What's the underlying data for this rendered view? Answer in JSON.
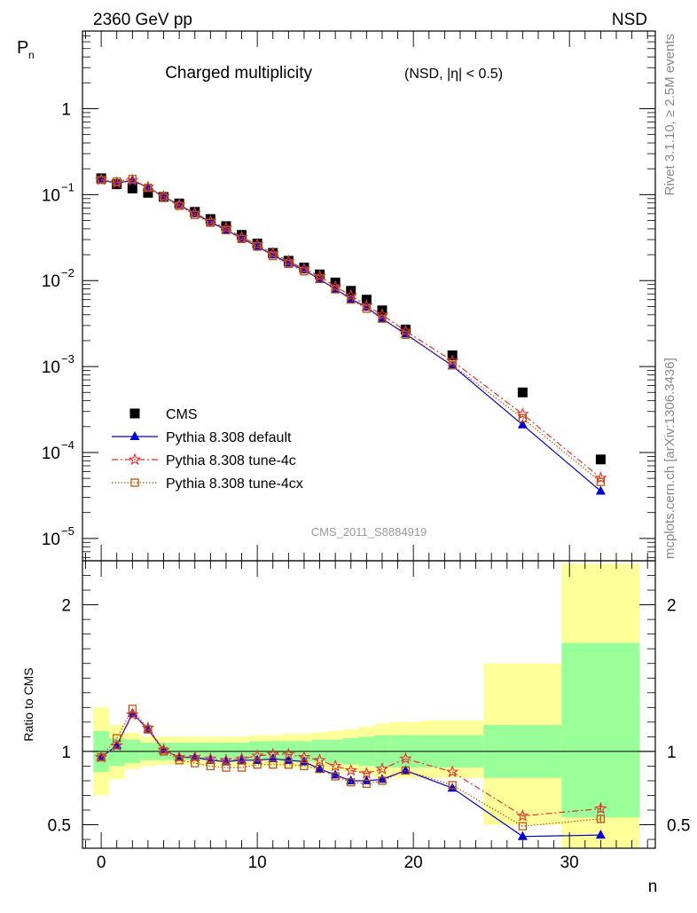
{
  "header": {
    "energy_label": "2360 GeV pp",
    "process_label": "NSD"
  },
  "side_labels": {
    "rivet": "Rivet 3.1.10, ≥ 2.5M events",
    "mcplots": "mcplots.cern.ch [arXiv:1306.3436]"
  },
  "colors": {
    "cms": "#000000",
    "default": "#0000cc",
    "tune4c": "#dd3333",
    "tune4cx": "#bb5511",
    "band_inner": "#99ff99",
    "band_outer": "#ffff99"
  },
  "chart_data": [
    {
      "type": "scatter",
      "panel": "main",
      "title": "Charged multiplicity",
      "title_suffix": "(NSD, |η| < 0.5)",
      "ylabel": "P",
      "ylabel_sub": "n",
      "yscale": "log",
      "xlim": [
        -1.2,
        35.5
      ],
      "ylim": [
        5.5e-06,
        8
      ],
      "y_ticks": [
        {
          "value": 1e-05,
          "label": "10",
          "exp": "−5"
        },
        {
          "value": 0.0001,
          "label": "10",
          "exp": "−4"
        },
        {
          "value": 0.001,
          "label": "10",
          "exp": "−3"
        },
        {
          "value": 0.01,
          "label": "10",
          "exp": "−2"
        },
        {
          "value": 0.1,
          "label": "10",
          "exp": "−1"
        },
        {
          "value": 1,
          "label": "1",
          "exp": ""
        }
      ],
      "watermark": "CMS_2011_S8884919",
      "legend_position": "bottom-left",
      "x": [
        0,
        1,
        2,
        3,
        4,
        5,
        6,
        7,
        8,
        9,
        10,
        11,
        12,
        13,
        14,
        15,
        16,
        17,
        18,
        19.5,
        22.5,
        27,
        32
      ],
      "series": [
        {
          "name": "CMS",
          "key": "cms",
          "marker": "square",
          "values": [
            0.155,
            0.132,
            0.118,
            0.105,
            0.094,
            0.079,
            0.063,
            0.052,
            0.043,
            0.034,
            0.027,
            0.021,
            0.017,
            0.0142,
            0.0118,
            0.0095,
            0.0076,
            0.006,
            0.0045,
            0.0027,
            0.00135,
            0.0005,
            8.3e-05
          ]
        },
        {
          "name": "Pythia 8.308 default",
          "key": "default",
          "marker": "triangle",
          "values": [
            0.148,
            0.136,
            0.146,
            0.121,
            0.095,
            0.076,
            0.06,
            0.048,
            0.039,
            0.031,
            0.025,
            0.0199,
            0.016,
            0.0133,
            0.0103,
            0.008,
            0.0061,
            0.0049,
            0.0036,
            0.0024,
            0.00102,
            0.00021,
            3.55e-05
          ]
        },
        {
          "name": "Pythia 8.308 tune-4c",
          "key": "tune4c",
          "marker": "star",
          "values": [
            0.149,
            0.137,
            0.147,
            0.122,
            0.095,
            0.076,
            0.061,
            0.049,
            0.041,
            0.032,
            0.0263,
            0.0207,
            0.0168,
            0.0137,
            0.0112,
            0.0085,
            0.0067,
            0.0051,
            0.004,
            0.00259,
            0.00116,
            0.00028,
            5.05e-05
          ]
        },
        {
          "name": "Pythia 8.308 tune-4cx",
          "key": "tune4cx",
          "marker": "open-square",
          "values": [
            0.148,
            0.142,
            0.152,
            0.12,
            0.094,
            0.074,
            0.058,
            0.047,
            0.0385,
            0.0305,
            0.0248,
            0.0193,
            0.0156,
            0.0128,
            0.0105,
            0.0079,
            0.006,
            0.0047,
            0.0036,
            0.00234,
            0.00104,
            0.00025,
            4.55e-05
          ]
        }
      ]
    },
    {
      "type": "line",
      "panel": "ratio",
      "ylabel": "Ratio to CMS",
      "xlabel": "n",
      "xlim": [
        -1.2,
        35.5
      ],
      "ylim": [
        0.34,
        2.3
      ],
      "x_ticks": [
        0,
        10,
        20,
        30
      ],
      "y_ticks": [
        {
          "value": 0.5,
          "label": "0.5"
        },
        {
          "value": 1,
          "label": "1"
        },
        {
          "value": 2,
          "label": "2"
        }
      ],
      "reference_line": 1,
      "bands": [
        {
          "x0": -0.5,
          "x1": 0.5,
          "inner": [
            0.86,
            1.14
          ],
          "outer": [
            0.7,
            1.3
          ]
        },
        {
          "x0": 0.5,
          "x1": 1.5,
          "inner": [
            0.9,
            1.09
          ],
          "outer": [
            0.81,
            1.18
          ]
        },
        {
          "x0": 1.5,
          "x1": 2.5,
          "inner": [
            0.92,
            1.08
          ],
          "outer": [
            0.88,
            1.13
          ]
        },
        {
          "x0": 2.5,
          "x1": 3.5,
          "inner": [
            0.94,
            1.06
          ],
          "outer": [
            0.9,
            1.1
          ]
        },
        {
          "x0": 3.5,
          "x1": 4.5,
          "inner": [
            0.94,
            1.06
          ],
          "outer": [
            0.91,
            1.1
          ]
        },
        {
          "x0": 4.5,
          "x1": 5.5,
          "inner": [
            0.94,
            1.06
          ],
          "outer": [
            0.91,
            1.1
          ]
        },
        {
          "x0": 5.5,
          "x1": 6.5,
          "inner": [
            0.94,
            1.06
          ],
          "outer": [
            0.91,
            1.1
          ]
        },
        {
          "x0": 6.5,
          "x1": 7.5,
          "inner": [
            0.94,
            1.06
          ],
          "outer": [
            0.9,
            1.1
          ]
        },
        {
          "x0": 7.5,
          "x1": 8.5,
          "inner": [
            0.94,
            1.06
          ],
          "outer": [
            0.9,
            1.1
          ]
        },
        {
          "x0": 8.5,
          "x1": 9.5,
          "inner": [
            0.94,
            1.06
          ],
          "outer": [
            0.9,
            1.1
          ]
        },
        {
          "x0": 9.5,
          "x1": 10.5,
          "inner": [
            0.94,
            1.07
          ],
          "outer": [
            0.9,
            1.11
          ]
        },
        {
          "x0": 10.5,
          "x1": 11.5,
          "inner": [
            0.94,
            1.07
          ],
          "outer": [
            0.9,
            1.11
          ]
        },
        {
          "x0": 11.5,
          "x1": 12.5,
          "inner": [
            0.93,
            1.07
          ],
          "outer": [
            0.89,
            1.12
          ]
        },
        {
          "x0": 12.5,
          "x1": 13.5,
          "inner": [
            0.93,
            1.07
          ],
          "outer": [
            0.89,
            1.12
          ]
        },
        {
          "x0": 13.5,
          "x1": 14.5,
          "inner": [
            0.93,
            1.08
          ],
          "outer": [
            0.88,
            1.13
          ]
        },
        {
          "x0": 14.5,
          "x1": 15.5,
          "inner": [
            0.92,
            1.08
          ],
          "outer": [
            0.87,
            1.14
          ]
        },
        {
          "x0": 15.5,
          "x1": 16.5,
          "inner": [
            0.91,
            1.09
          ],
          "outer": [
            0.86,
            1.15
          ]
        },
        {
          "x0": 16.5,
          "x1": 17.5,
          "inner": [
            0.9,
            1.1
          ],
          "outer": [
            0.84,
            1.17
          ]
        },
        {
          "x0": 17.5,
          "x1": 18.5,
          "inner": [
            0.89,
            1.11
          ],
          "outer": [
            0.82,
            1.19
          ]
        },
        {
          "x0": 18.5,
          "x1": 20.5,
          "inner": [
            0.89,
            1.11
          ],
          "outer": [
            0.82,
            1.2
          ]
        },
        {
          "x0": 20.5,
          "x1": 24.5,
          "inner": [
            0.89,
            1.11
          ],
          "outer": [
            0.82,
            1.21
          ]
        },
        {
          "x0": 24.5,
          "x1": 29.5,
          "inner": [
            0.82,
            1.18
          ],
          "outer": [
            0.5,
            1.6
          ]
        },
        {
          "x0": 29.5,
          "x1": 34.5,
          "inner": [
            0.55,
            1.74
          ],
          "outer": [
            0.34,
            2.28
          ]
        }
      ],
      "x": [
        0,
        1,
        2,
        3,
        4,
        5,
        6,
        7,
        8,
        9,
        10,
        11,
        12,
        13,
        14,
        15,
        16,
        17,
        18,
        19.5,
        22.5,
        27,
        32
      ],
      "series": [
        {
          "name": "Pythia 8.308 default",
          "key": "default",
          "marker": "triangle",
          "values": [
            0.96,
            1.04,
            1.26,
            1.15,
            1.01,
            0.96,
            0.96,
            0.94,
            0.93,
            0.94,
            0.94,
            0.95,
            0.94,
            0.93,
            0.88,
            0.84,
            0.8,
            0.8,
            0.81,
            0.87,
            0.75,
            0.42,
            0.43
          ],
          "err": [
            0,
            0,
            0,
            0,
            0,
            0,
            0,
            0,
            0,
            0,
            0,
            0,
            0,
            0,
            0,
            0,
            0,
            0,
            0,
            0,
            0,
            0,
            0.025
          ]
        },
        {
          "name": "Pythia 8.308 tune-4c",
          "key": "tune4c",
          "marker": "star",
          "values": [
            0.96,
            1.04,
            1.25,
            1.16,
            1.01,
            0.96,
            0.96,
            0.95,
            0.94,
            0.95,
            0.97,
            0.98,
            0.98,
            0.96,
            0.94,
            0.9,
            0.87,
            0.85,
            0.88,
            0.95,
            0.86,
            0.56,
            0.61
          ],
          "err": [
            0,
            0,
            0,
            0,
            0,
            0,
            0,
            0,
            0,
            0,
            0,
            0,
            0,
            0,
            0,
            0,
            0,
            0,
            0,
            0,
            0,
            0,
            0.025
          ]
        },
        {
          "name": "Pythia 8.308 tune-4cx",
          "key": "tune4cx",
          "marker": "open-square",
          "values": [
            0.96,
            1.09,
            1.29,
            1.15,
            1.0,
            0.94,
            0.92,
            0.9,
            0.89,
            0.89,
            0.91,
            0.91,
            0.91,
            0.9,
            0.88,
            0.83,
            0.79,
            0.78,
            0.8,
            0.87,
            0.77,
            0.49,
            0.54
          ],
          "err": [
            0,
            0,
            0,
            0,
            0,
            0,
            0,
            0,
            0,
            0,
            0,
            0,
            0,
            0,
            0,
            0,
            0,
            0,
            0,
            0,
            0,
            0,
            0.025
          ]
        }
      ]
    }
  ]
}
